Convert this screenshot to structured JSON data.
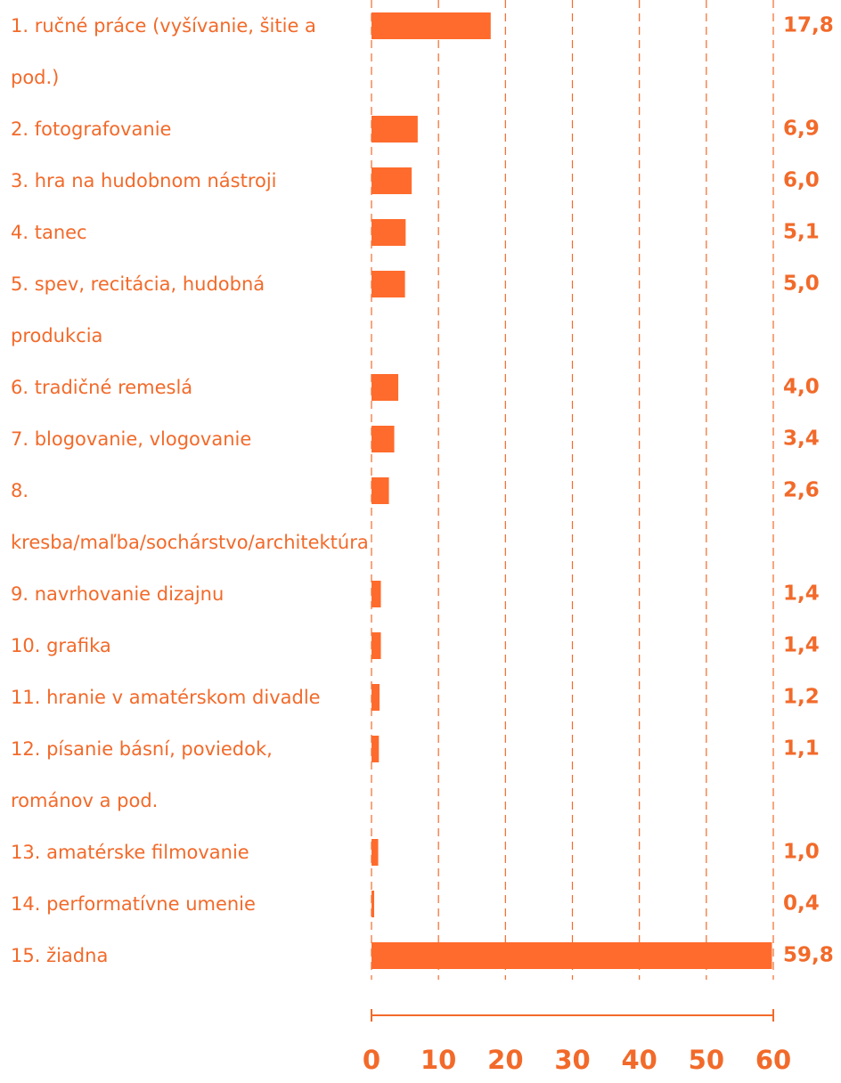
{
  "chart_data": {
    "type": "barh",
    "categories": [
      "1. ručné práce (vyšívanie, šitie a pod.)",
      "2. fotografovanie",
      "3. hra na hudobnom nástroji",
      "4. tanec",
      "5. spev, recitácia, hudobná produkcia",
      "6. tradičné remeslá",
      "7. blogovanie, vlogovanie",
      "8. kresba/maľba/sochárstvo/architektúra",
      "9. navrhovanie dizajnu",
      "10. grafika",
      "11. hranie v amatérskom divadle",
      "12. písanie básní, poviedok, románov a pod.",
      "13. amatérske filmovanie",
      "14. performatívne umenie",
      "15. žiadna"
    ],
    "values": [
      17.8,
      6.9,
      6.0,
      5.1,
      5.0,
      4.0,
      3.4,
      2.6,
      1.4,
      1.4,
      1.2,
      1.1,
      1.0,
      0.4,
      59.8
    ],
    "value_labels": [
      "17,8",
      "6,9",
      "6,0",
      "5,1",
      "5,0",
      "4,0",
      "3,4",
      "2,6",
      "1,4",
      "1,4",
      "1,2",
      "1,1",
      "1,0",
      "0,4",
      "59,8"
    ],
    "color": "#ff6b2c",
    "xlim": [
      0,
      60
    ],
    "xticks": [
      0,
      10,
      20,
      30,
      40,
      50,
      60
    ],
    "grid": true
  }
}
